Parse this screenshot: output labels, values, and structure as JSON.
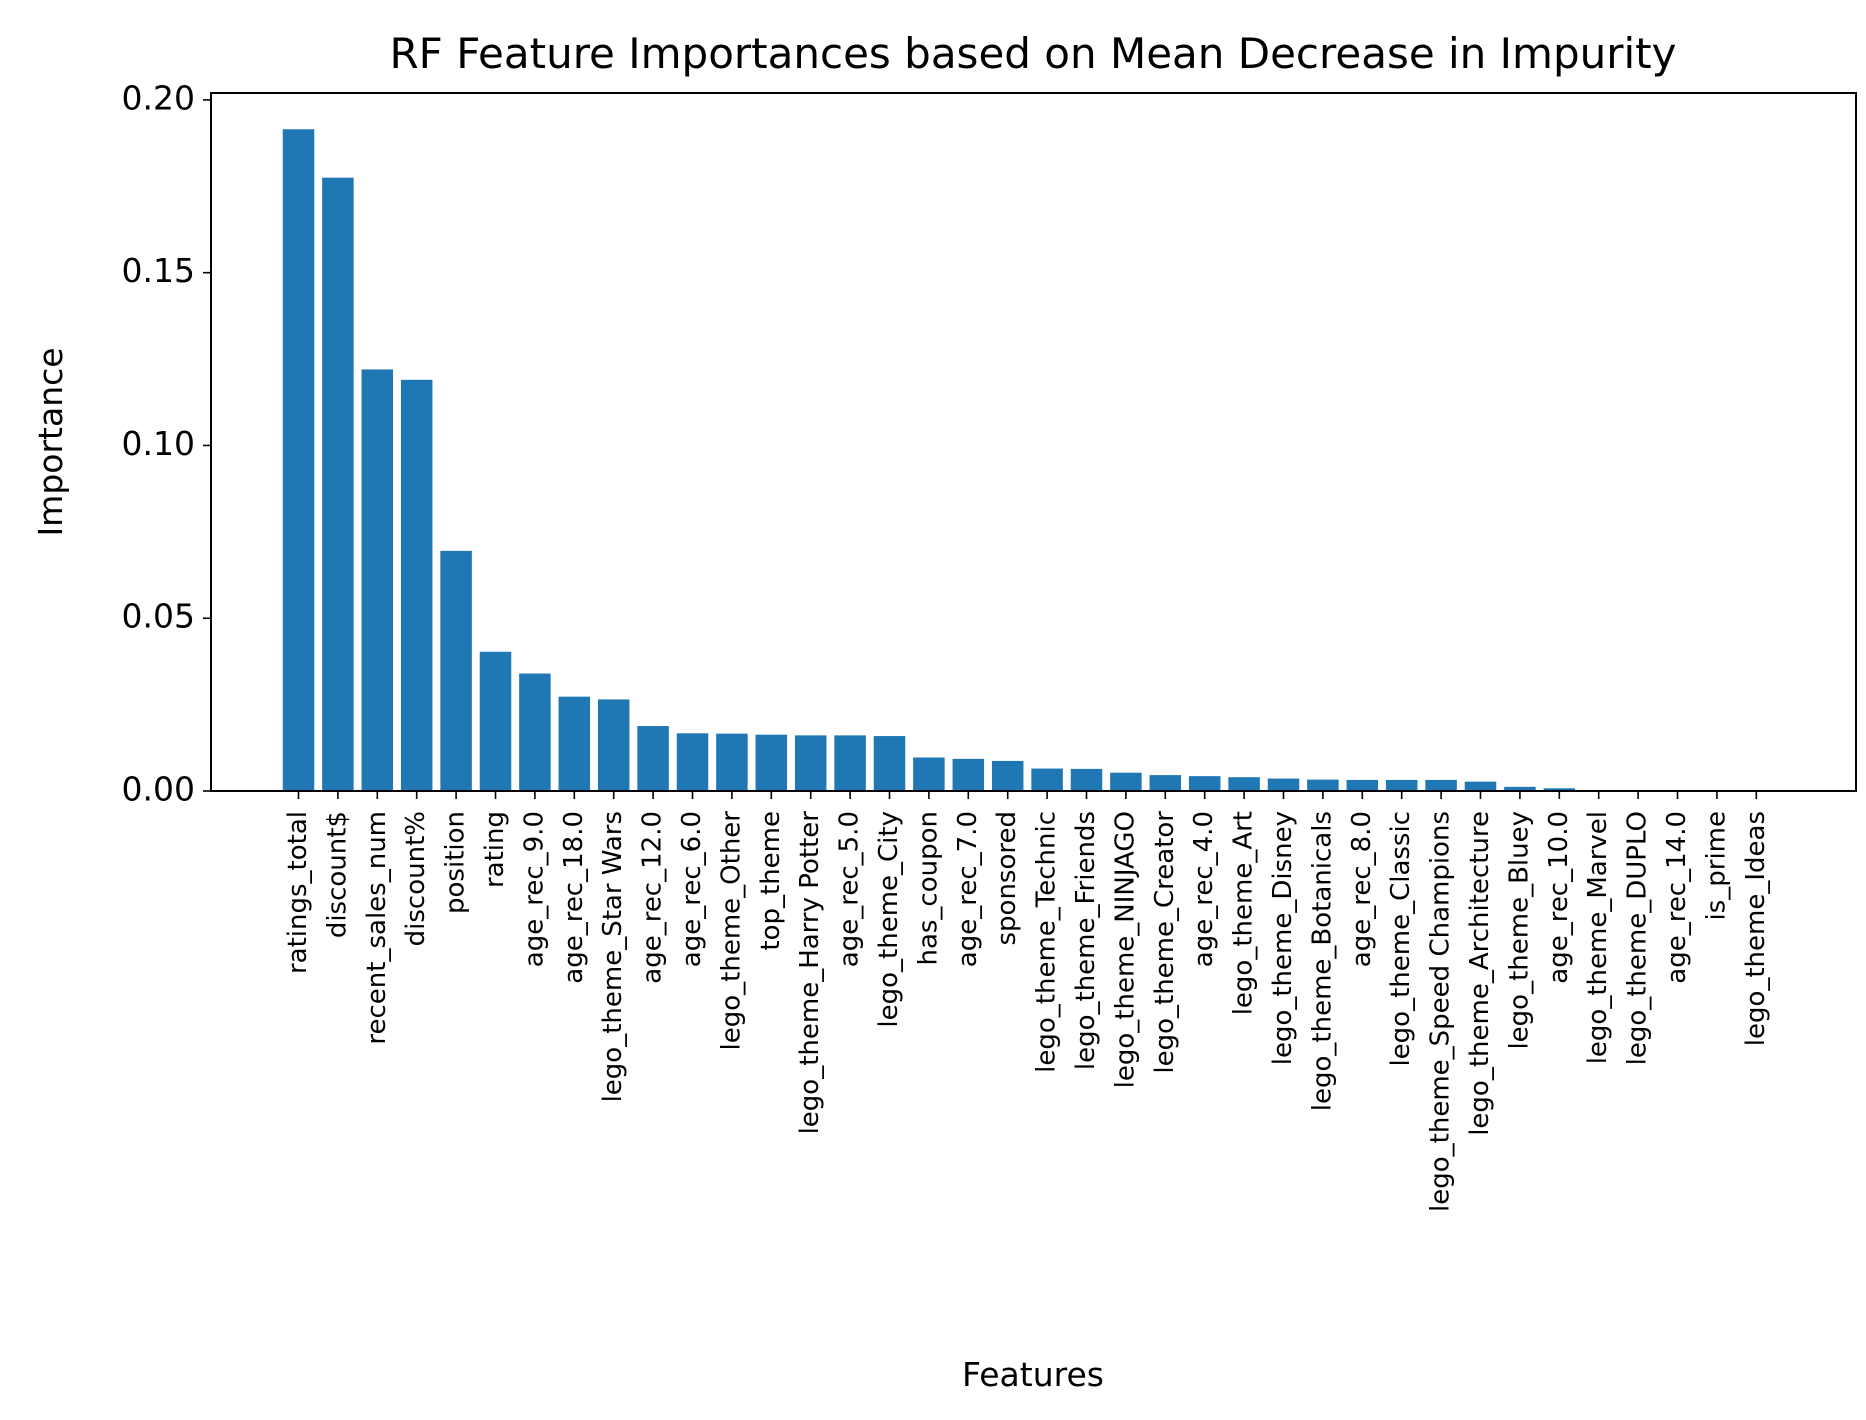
{
  "chart_data": {
    "type": "bar",
    "title": "RF Feature Importances based on Mean Decrease in Impurity",
    "xlabel": "Features",
    "ylabel": "Importance",
    "ylim": [
      0,
      0.202
    ],
    "yticks": [
      "0.00",
      "0.05",
      "0.10",
      "0.15",
      "0.20"
    ],
    "grid": false,
    "bar_color": "#1f77b4",
    "categories": [
      "ratings_total",
      "discount$",
      "recent_sales_num",
      "discount%",
      "position",
      "rating",
      "age_rec_9.0",
      "age_rec_18.0",
      "lego_theme_Star Wars",
      "age_rec_12.0",
      "age_rec_6.0",
      "lego_theme_Other",
      "top_theme",
      "lego_theme_Harry Potter",
      "age_rec_5.0",
      "lego_theme_City",
      "has_coupon",
      "age_rec_7.0",
      "sponsored",
      "lego_theme_Technic",
      "lego_theme_Friends",
      "lego_theme_NINJAGO",
      "lego_theme_Creator",
      "age_rec_4.0",
      "lego_theme_Art",
      "lego_theme_Disney",
      "lego_theme_Botanicals",
      "age_rec_8.0",
      "lego_theme_Classic",
      "lego_theme_Speed Champions",
      "lego_theme_Architecture",
      "lego_theme_Bluey",
      "age_rec_10.0",
      "lego_theme_Marvel",
      "lego_theme_DUPLO",
      "age_rec_14.0",
      "is_prime",
      "lego_theme_Ideas"
    ],
    "values": [
      0.1915,
      0.1775,
      0.122,
      0.119,
      0.0695,
      0.0403,
      0.034,
      0.0273,
      0.0265,
      0.0188,
      0.0167,
      0.0166,
      0.0163,
      0.0161,
      0.0161,
      0.0159,
      0.0097,
      0.0093,
      0.0087,
      0.0065,
      0.0064,
      0.0053,
      0.0046,
      0.0043,
      0.004,
      0.0036,
      0.0033,
      0.0032,
      0.0032,
      0.0032,
      0.0027,
      0.0012,
      0.0008,
      0.0002,
      0.0002,
      0.0001,
      0.0001,
      0.0001
    ]
  }
}
